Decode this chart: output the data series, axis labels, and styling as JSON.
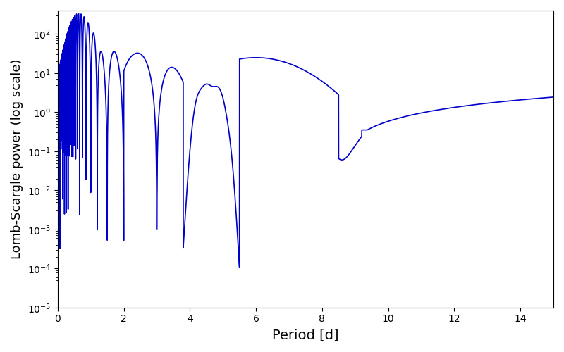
{
  "title": "",
  "xlabel": "Period [d]",
  "ylabel": "Lomb-Scargle power (log scale)",
  "xlim": [
    0,
    15
  ],
  "ylim": [
    1e-05,
    400
  ],
  "line_color": "#0000cc",
  "line_width": 1.2,
  "background_color": "#ffffff",
  "xlabel_fontsize": 14,
  "ylabel_fontsize": 13
}
